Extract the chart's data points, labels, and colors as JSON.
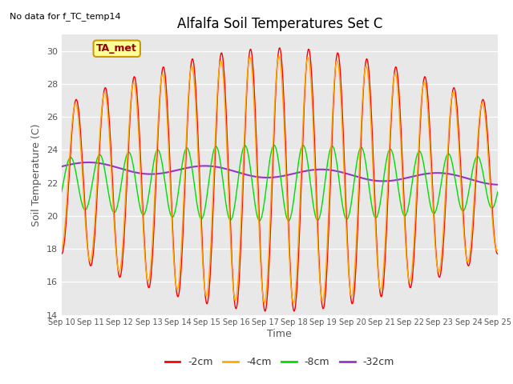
{
  "title": "Alfalfa Soil Temperatures Set C",
  "ylabel": "Soil Temperature (C)",
  "xlabel": "Time",
  "ylim": [
    14,
    31
  ],
  "yticks": [
    14,
    16,
    18,
    20,
    22,
    24,
    26,
    28,
    30
  ],
  "bg_color": "#e8e8e8",
  "fig_color": "#ffffff",
  "series": [
    {
      "label": "-2cm",
      "color": "#ff0000"
    },
    {
      "label": "-4cm",
      "color": "#ffaa00"
    },
    {
      "label": "-8cm",
      "color": "#00dd00"
    },
    {
      "label": "-32cm",
      "color": "#9933cc"
    }
  ],
  "legend_box_facecolor": "#ffff99",
  "legend_box_edgecolor": "#cc9900",
  "legend_label": "TA_met",
  "annotation_text": "No data for f_TC_temp14",
  "xtick_labels": [
    "Sep 10",
    "Sep 11",
    "Sep 12",
    "Sep 13",
    "Sep 14",
    "Sep 15",
    "Sep 16",
    "Sep 17",
    "Sep 18",
    "Sep 19",
    "Sep 20",
    "Sep 21",
    "Sep 22",
    "Sep 23",
    "Sep 24",
    "Sep 25"
  ],
  "n_days": 15,
  "points_per_day": 48
}
